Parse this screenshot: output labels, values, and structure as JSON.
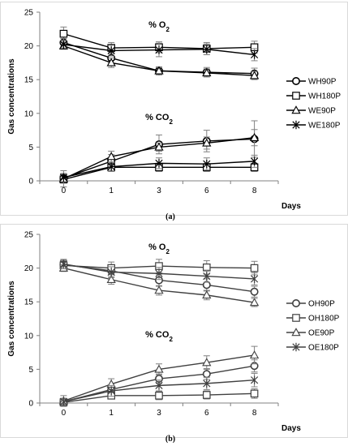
{
  "panel_a_label": "(a)",
  "panel_b_label": "(b)",
  "chart_data": [
    {
      "type": "line",
      "ylabel": "Gas concentrations",
      "xlabel": "Days",
      "ylim": [
        0,
        25
      ],
      "yticks": [
        0,
        5,
        10,
        15,
        20,
        25
      ],
      "categories": [
        "0",
        "1",
        "3",
        "6",
        "8"
      ],
      "grid": false,
      "legend_position": "right",
      "annotations": [
        {
          "text": "% O",
          "sub": "2",
          "at_y": 23.2
        },
        {
          "text": "% CO",
          "sub": "2",
          "at_y": 9.5
        }
      ],
      "series": [
        {
          "name": "WH90P",
          "marker": "circle",
          "gas": "O2",
          "values": [
            20.5,
            18.2,
            16.3,
            16.1,
            15.9
          ],
          "err": [
            0.6,
            0.8,
            0.6,
            0.7,
            0.8
          ]
        },
        {
          "name": "WH180P",
          "marker": "square",
          "gas": "O2",
          "values": [
            21.8,
            19.7,
            19.8,
            19.6,
            19.8
          ],
          "err": [
            1.0,
            0.8,
            0.8,
            0.9,
            0.9
          ]
        },
        {
          "name": "WE90P",
          "marker": "triangle",
          "gas": "O2",
          "values": [
            20.0,
            17.5,
            16.3,
            16.0,
            15.6
          ],
          "err": [
            0.5,
            0.7,
            0.5,
            0.6,
            0.6
          ]
        },
        {
          "name": "WE180P",
          "marker": "star",
          "gas": "O2",
          "values": [
            20.2,
            19.3,
            19.4,
            19.5,
            18.7
          ],
          "err": [
            0.5,
            0.8,
            1.0,
            0.8,
            0.9
          ]
        },
        {
          "name": "WH90P",
          "marker": "circle",
          "gas": "CO2",
          "values": [
            0.4,
            2.9,
            5.4,
            5.9,
            6.2
          ],
          "err": [
            0.6,
            1.0,
            1.4,
            1.6,
            2.7
          ]
        },
        {
          "name": "WH180P",
          "marker": "square",
          "gas": "CO2",
          "values": [
            0.2,
            2.0,
            2.0,
            2.0,
            2.0
          ],
          "err": [
            0.4,
            0.6,
            0.6,
            0.6,
            0.6
          ]
        },
        {
          "name": "WE90P",
          "marker": "triangle",
          "gas": "CO2",
          "values": [
            0.3,
            3.6,
            5.0,
            5.6,
            6.4
          ],
          "err": [
            1.2,
            0.8,
            0.6,
            0.9,
            1.2
          ]
        },
        {
          "name": "WE180P",
          "marker": "star",
          "gas": "CO2",
          "values": [
            0.5,
            2.1,
            2.6,
            2.5,
            2.9
          ],
          "err": [
            0.6,
            0.6,
            0.8,
            0.9,
            0.9
          ]
        }
      ],
      "legend": [
        {
          "name": "WH90P",
          "marker": "circle"
        },
        {
          "name": "WH180P",
          "marker": "square"
        },
        {
          "name": "WE90P",
          "marker": "triangle"
        },
        {
          "name": "WE180P",
          "marker": "star"
        }
      ]
    },
    {
      "type": "line",
      "ylabel": "Gas concentrations",
      "xlabel": "Days",
      "ylim": [
        0,
        25
      ],
      "yticks": [
        0,
        5,
        10,
        15,
        20,
        25
      ],
      "categories": [
        "0",
        "1",
        "3",
        "6",
        "8"
      ],
      "grid": false,
      "legend_position": "right",
      "annotations": [
        {
          "text": "% O",
          "sub": "2",
          "at_y": 23.2
        },
        {
          "text": "% CO",
          "sub": "2",
          "at_y": 10.2
        }
      ],
      "series": [
        {
          "name": "OH90P",
          "marker": "circle",
          "gas": "O2",
          "values": [
            20.5,
            19.6,
            18.2,
            17.5,
            16.5
          ],
          "err": [
            0.6,
            0.9,
            0.9,
            0.9,
            0.8
          ]
        },
        {
          "name": "OH180P",
          "marker": "square",
          "gas": "O2",
          "values": [
            20.4,
            20.0,
            20.3,
            20.1,
            20.0
          ],
          "err": [
            0.8,
            0.9,
            1.0,
            1.0,
            1.0
          ]
        },
        {
          "name": "OE90P",
          "marker": "triangle",
          "gas": "O2",
          "values": [
            20.0,
            18.3,
            16.7,
            16.0,
            14.9
          ],
          "err": [
            0.5,
            0.7,
            0.7,
            0.7,
            0.6
          ]
        },
        {
          "name": "OE180P",
          "marker": "star",
          "gas": "O2",
          "values": [
            20.6,
            19.4,
            19.2,
            18.8,
            18.4
          ],
          "err": [
            0.7,
            0.8,
            0.9,
            0.9,
            0.9
          ]
        },
        {
          "name": "OH90P",
          "marker": "circle",
          "gas": "CO2",
          "values": [
            0.2,
            2.0,
            3.6,
            4.3,
            5.5
          ],
          "err": [
            0.5,
            0.6,
            0.7,
            0.8,
            0.9
          ]
        },
        {
          "name": "OH180P",
          "marker": "square",
          "gas": "CO2",
          "values": [
            0.1,
            1.1,
            1.1,
            1.2,
            1.4
          ],
          "err": [
            0.5,
            0.5,
            0.6,
            0.6,
            0.7
          ]
        },
        {
          "name": "OE90P",
          "marker": "triangle",
          "gas": "CO2",
          "values": [
            0.3,
            2.8,
            5.0,
            6.0,
            7.1
          ],
          "err": [
            0.8,
            0.8,
            0.8,
            1.0,
            1.3
          ]
        },
        {
          "name": "OE180P",
          "marker": "star",
          "gas": "CO2",
          "values": [
            0.2,
            1.8,
            2.6,
            2.9,
            3.4
          ],
          "err": [
            0.5,
            0.8,
            0.8,
            0.9,
            1.0
          ]
        }
      ],
      "legend": [
        {
          "name": "OH90P",
          "marker": "circle"
        },
        {
          "name": "OH180P",
          "marker": "square"
        },
        {
          "name": "OE90P",
          "marker": "triangle"
        },
        {
          "name": "OE180P",
          "marker": "star"
        }
      ]
    }
  ],
  "colors": {
    "a_series": [
      "#000000",
      "#000000",
      "#000000",
      "#000000"
    ],
    "b_series": [
      "#404040",
      "#404040",
      "#404040",
      "#404040"
    ],
    "error_bar": "#808080",
    "axis": "#808080",
    "marker_fill": "#ffffff"
  }
}
